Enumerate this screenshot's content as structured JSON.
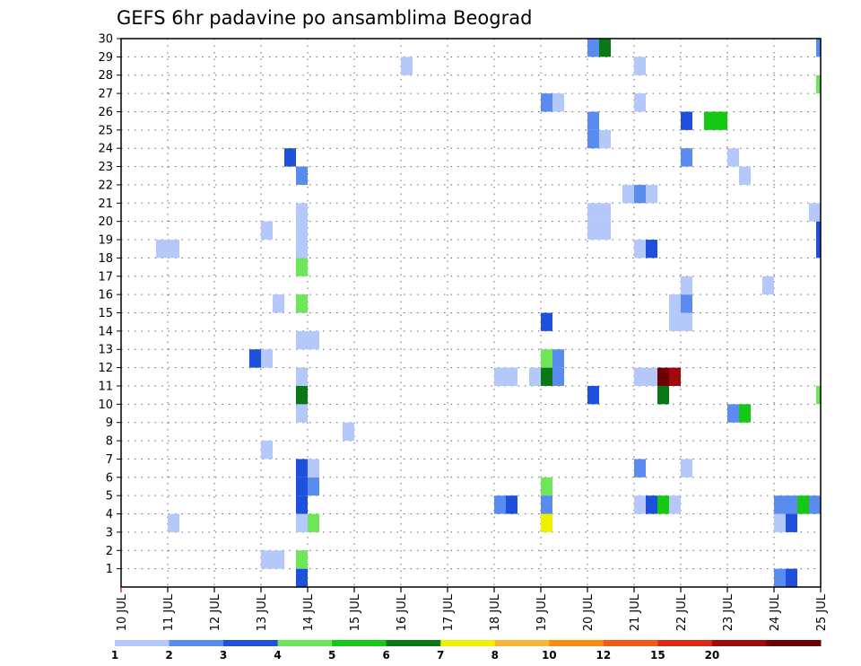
{
  "chart_data": {
    "type": "heatmap",
    "title": "GEFS 6hr padavine po ansamblima Beograd",
    "x_range": [
      0,
      60
    ],
    "y_range": [
      0,
      30
    ],
    "x_ticks": [
      {
        "x": 0,
        "label": "10 JUL"
      },
      {
        "x": 4,
        "label": "11 JUL"
      },
      {
        "x": 8,
        "label": "12 JUL"
      },
      {
        "x": 12,
        "label": "13 JUL"
      },
      {
        "x": 16,
        "label": "14 JUL"
      },
      {
        "x": 20,
        "label": "15 JUL"
      },
      {
        "x": 24,
        "label": "16 JUL"
      },
      {
        "x": 28,
        "label": "17 JUL"
      },
      {
        "x": 32,
        "label": "18 JUL"
      },
      {
        "x": 36,
        "label": "19 JUL"
      },
      {
        "x": 40,
        "label": "20 JUL"
      },
      {
        "x": 44,
        "label": "21 JUL"
      },
      {
        "x": 48,
        "label": "22 JUL"
      },
      {
        "x": 52,
        "label": "23 JUL"
      },
      {
        "x": 56,
        "label": "24 JUL"
      },
      {
        "x": 60,
        "label": "25 JUL"
      }
    ],
    "y_ticks": [
      "1",
      "2",
      "3",
      "4",
      "5",
      "6",
      "7",
      "8",
      "9",
      "10",
      "11",
      "12",
      "13",
      "14",
      "15",
      "16",
      "17",
      "18",
      "19",
      "20",
      "21",
      "22",
      "23",
      "24",
      "25",
      "26",
      "27",
      "28",
      "29",
      "30"
    ],
    "grid": true,
    "colorbar": {
      "colors": [
        "#b4c8fa",
        "#5a8cf0",
        "#1e50dc",
        "#6ee65a",
        "#14c814",
        "#0a7814",
        "#f0f000",
        "#fab43c",
        "#f58c14",
        "#f05a14",
        "#dc2814",
        "#a00a0a",
        "#6e0000"
      ],
      "labels": [
        {
          "after": 0,
          "label": "1"
        },
        {
          "after": 1,
          "label": "2"
        },
        {
          "after": 2,
          "label": "3"
        },
        {
          "after": 3,
          "label": "4"
        },
        {
          "after": 4,
          "label": "5"
        },
        {
          "after": 5,
          "label": "6"
        },
        {
          "after": 6,
          "label": "7"
        },
        {
          "after": 7,
          "label": "8"
        },
        {
          "after": 8,
          "label": "10"
        },
        {
          "after": 9,
          "label": "12"
        },
        {
          "after": 10,
          "label": "15"
        },
        {
          "after": 11,
          "label": "20"
        }
      ]
    },
    "cells": [
      [
        15,
        0,
        2
      ],
      [
        56,
        0,
        1
      ],
      [
        57,
        0,
        2
      ],
      [
        12,
        1,
        0
      ],
      [
        13,
        1,
        0
      ],
      [
        15,
        1,
        3
      ],
      [
        15,
        4,
        2
      ],
      [
        15,
        5,
        2
      ],
      [
        16,
        5,
        1
      ],
      [
        15,
        6,
        2
      ],
      [
        16,
        6,
        0
      ],
      [
        36,
        5,
        3
      ],
      [
        4,
        3,
        0
      ],
      [
        15,
        3,
        0
      ],
      [
        16,
        3,
        3
      ],
      [
        36,
        3,
        6
      ],
      [
        56,
        3,
        0
      ],
      [
        57,
        3,
        2
      ],
      [
        32,
        4,
        1
      ],
      [
        33,
        4,
        2
      ],
      [
        36,
        4,
        1
      ],
      [
        44,
        4,
        0
      ],
      [
        45,
        4,
        2
      ],
      [
        46,
        4,
        4
      ],
      [
        47,
        4,
        0
      ],
      [
        56,
        4,
        1
      ],
      [
        57,
        4,
        1
      ],
      [
        58,
        4,
        4
      ],
      [
        59,
        4,
        1
      ],
      [
        44,
        6,
        1
      ],
      [
        48,
        6,
        0
      ],
      [
        12,
        7,
        0
      ],
      [
        19,
        8,
        0
      ],
      [
        15,
        9,
        0
      ],
      [
        52,
        9,
        1
      ],
      [
        53,
        9,
        4
      ],
      [
        15,
        10,
        5
      ],
      [
        40,
        10,
        2
      ],
      [
        46,
        10,
        5
      ],
      [
        60,
        10,
        3
      ],
      [
        32,
        11,
        0
      ],
      [
        33,
        11,
        0
      ],
      [
        35,
        11,
        0
      ],
      [
        36,
        11,
        5
      ],
      [
        37,
        11,
        1
      ],
      [
        44,
        11,
        0
      ],
      [
        45,
        11,
        0
      ],
      [
        46,
        11,
        12
      ],
      [
        47,
        11,
        11
      ],
      [
        15,
        11,
        0
      ],
      [
        36,
        12,
        3
      ],
      [
        37,
        12,
        1
      ],
      [
        11,
        12,
        2
      ],
      [
        12,
        12,
        0
      ],
      [
        15,
        13,
        0
      ],
      [
        16,
        13,
        0
      ],
      [
        36,
        14,
        2
      ],
      [
        13,
        15,
        0
      ],
      [
        15,
        15,
        3
      ],
      [
        47,
        15,
        0
      ],
      [
        48,
        15,
        1
      ],
      [
        47,
        14,
        0
      ],
      [
        48,
        14,
        0
      ],
      [
        48,
        16,
        0
      ],
      [
        55,
        16,
        0
      ],
      [
        15,
        17,
        3
      ],
      [
        15,
        18,
        0
      ],
      [
        3,
        18,
        0
      ],
      [
        4,
        18,
        0
      ],
      [
        15,
        19,
        0
      ],
      [
        44,
        18,
        0
      ],
      [
        45,
        18,
        2
      ],
      [
        60,
        18,
        2
      ],
      [
        60,
        19,
        2
      ],
      [
        12,
        19,
        0
      ],
      [
        15,
        20,
        0
      ],
      [
        40,
        19,
        0
      ],
      [
        41,
        19,
        0
      ],
      [
        40,
        20,
        0
      ],
      [
        41,
        20,
        0
      ],
      [
        59,
        20,
        0
      ],
      [
        43,
        21,
        0
      ],
      [
        44,
        21,
        1
      ],
      [
        45,
        21,
        0
      ],
      [
        15,
        22,
        1
      ],
      [
        53,
        22,
        0
      ],
      [
        52,
        23,
        0
      ],
      [
        14,
        23,
        2
      ],
      [
        48,
        23,
        1
      ],
      [
        40,
        24,
        1
      ],
      [
        41,
        24,
        0
      ],
      [
        40,
        25,
        1
      ],
      [
        48,
        25,
        2
      ],
      [
        50,
        25,
        4
      ],
      [
        51,
        25,
        4
      ],
      [
        36,
        26,
        1
      ],
      [
        37,
        26,
        0
      ],
      [
        44,
        26,
        0
      ],
      [
        60,
        27,
        3
      ],
      [
        24,
        28,
        0
      ],
      [
        44,
        28,
        0
      ],
      [
        40,
        29,
        1
      ],
      [
        41,
        29,
        5
      ],
      [
        60,
        29,
        1
      ]
    ]
  }
}
